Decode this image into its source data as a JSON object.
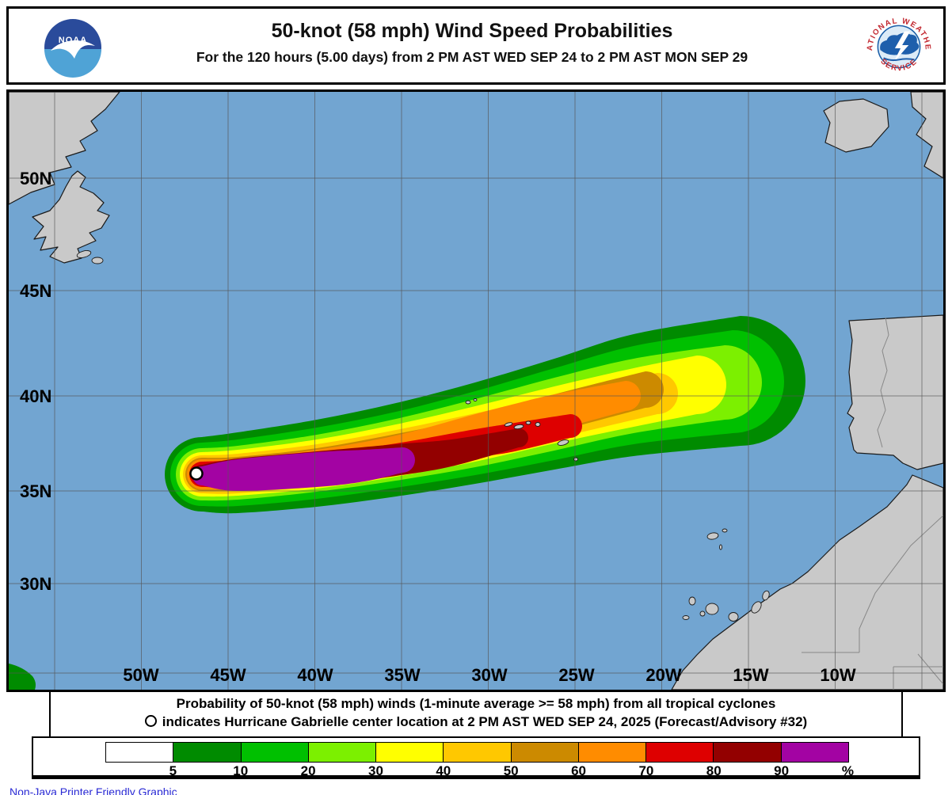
{
  "header": {
    "title": "50-knot (58 mph) Wind Speed Probabilities",
    "subtitle": "For the 120 hours (5.00 days) from 2 PM AST WED SEP 24 to 2 PM AST MON SEP 29",
    "noaa_logo_text": "NOAA",
    "nws_top": "NATIONAL WEATHER",
    "nws_bottom": "SERVICE"
  },
  "map": {
    "lat_labels": [
      "50N",
      "45N",
      "40N",
      "35N",
      "30N"
    ],
    "lon_labels": [
      "50W",
      "45W",
      "40W",
      "35W",
      "30W",
      "25W",
      "20W",
      "15W",
      "10W"
    ],
    "colors": {
      "ocean": "#72A5D1",
      "land": "#C9C9C9",
      "coastline": "#1A1A1A",
      "country_border": "#888888",
      "grid": "#555555"
    },
    "storm_center": "Hurricane Gabrielle center location marker (white circle near 47W 36N)"
  },
  "caption": {
    "line1": "Probability of 50-knot (58 mph) winds (1-minute average >= 58 mph) from all tropical cyclones",
    "line2_marker": "O",
    "line2": "indicates Hurricane Gabrielle center location at 2 PM AST WED SEP 24, 2025 (Forecast/Advisory #32)"
  },
  "legend": {
    "values": [
      "5",
      "10",
      "20",
      "30",
      "40",
      "50",
      "60",
      "70",
      "80",
      "90"
    ],
    "unit": "%",
    "colors": [
      "#FFFFFF",
      "#008B00",
      "#00C000",
      "#7CF000",
      "#FFFF00",
      "#FFC800",
      "#CC8A00",
      "#FF8C00",
      "#DE0000",
      "#930000",
      "#A303A3"
    ]
  },
  "chart_data": {
    "type": "contour-map",
    "title": "50-knot (58 mph) Wind Speed Probabilities",
    "levels_percent": [
      5,
      10,
      20,
      30,
      40,
      50,
      60,
      70,
      80,
      90
    ],
    "swath_summary": "Elongated ENE-oriented probability swath over the open Atlantic from about 47W,36N to about 13W,41N; >=90% (purple) core near 46W-42W around 36N; decreasing bands outward to 5% (dark green) reaching near 13W by the Azores track toward Iberia.",
    "grid": {
      "latitudes": [
        "50N",
        "45N",
        "40N",
        "35N",
        "30N"
      ],
      "longitudes": [
        "50W",
        "45W",
        "40W",
        "35W",
        "30W",
        "25W",
        "20W",
        "15W",
        "10W"
      ]
    }
  },
  "footer_link": "Non-Java Printer Friendly Graphic"
}
